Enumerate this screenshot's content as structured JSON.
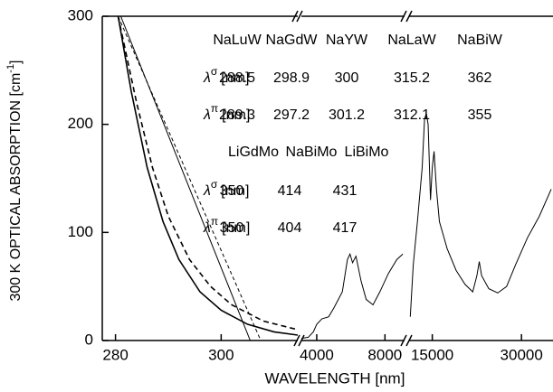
{
  "chart_data": {
    "type": "line",
    "x_label": "WAVELENGTH [nm]",
    "y_label": "300 K OPTICAL ABSORPTION [cm",
    "y_label_sup": "-1",
    "y_label_end": "]",
    "ylim": [
      0,
      300
    ],
    "yticks": [
      0,
      100,
      200,
      300
    ],
    "segments": [
      {
        "xlim": [
          277.5,
          314.5
        ],
        "xticks": [
          280,
          300
        ],
        "series": [
          {
            "color": "#000000",
            "style": "solid",
            "x": [
              280.5,
              283,
              286,
              289,
              292,
              296,
              300,
              305,
              310,
              314.5
            ],
            "values": [
              300,
              230,
              160,
              110,
              75,
              45,
              28,
              15,
              8,
              5
            ]
          },
          {
            "color": "#000000",
            "style": "dashed",
            "x": [
              280.5,
              284,
              287,
              290,
              294,
              298,
              302,
              308,
              314.5
            ],
            "values": [
              300,
              220,
              160,
              115,
              75,
              50,
              33,
              18,
              10
            ]
          },
          {
            "color": "#000000",
            "style": "thin",
            "x": [
              281,
              305.5
            ],
            "values": [
              300,
              0
            ]
          },
          {
            "color": "#000000",
            "style": "thin-dashed",
            "x": [
              280.5,
              307.5
            ],
            "values": [
              300,
              0
            ]
          }
        ]
      },
      {
        "xlim": [
          3100,
          9150
        ],
        "xticks": [
          4000,
          8000
        ],
        "series": [
          {
            "color": "#000000",
            "style": "thin",
            "x": [
              3100,
              3500,
              3800,
              4000,
              4300,
              4700,
              5000,
              5500,
              5800,
              5950,
              6100,
              6300,
              6600,
              6900,
              7300,
              7700,
              8200,
              8700,
              9050
            ],
            "values": [
              2,
              3,
              8,
              15,
              20,
              22,
              30,
              45,
              75,
              80,
              72,
              78,
              55,
              38,
              33,
              45,
              62,
              75,
              80
            ]
          }
        ]
      },
      {
        "xlim": [
          11100,
          35300
        ],
        "xticks": [
          15000,
          30000
        ],
        "series": [
          {
            "color": "#000000",
            "style": "thin",
            "x": [
              11300,
              11800,
              12500,
              13300,
              13700,
              14000,
              14300,
              14700,
              15000,
              15300,
              15700,
              16200,
              17500,
              19000,
              20500,
              21800,
              22500,
              22900,
              23300,
              24500,
              26000,
              27500,
              29000,
              31000,
              33000,
              35000
            ],
            "values": [
              22,
              70,
              110,
              160,
              205,
              210,
              200,
              130,
              160,
              175,
              140,
              110,
              85,
              65,
              52,
              45,
              60,
              73,
              60,
              48,
              44,
              50,
              70,
              95,
              115,
              140
            ]
          }
        ]
      }
    ],
    "tables": [
      {
        "columns": [
          "NaLuW",
          "NaGdW",
          "NaYW",
          "NaLaW",
          "NaBiW"
        ],
        "rows": [
          {
            "symbol": "λ",
            "sup": "σ",
            "unit": "[nm]",
            "values": [
              288.5,
              298.9,
              300,
              315.2,
              362
            ]
          },
          {
            "symbol": "λ",
            "sup": "π",
            "unit": "[nm]",
            "values": [
              289.3,
              297.2,
              301.2,
              312.1,
              355
            ]
          }
        ]
      },
      {
        "columns": [
          "LiGdMo",
          "NaBiMo",
          "LiBiMo"
        ],
        "rows": [
          {
            "symbol": "λ",
            "sup": "σ",
            "unit": "[nm]",
            "values": [
              350,
              414,
              431
            ]
          },
          {
            "symbol": "λ",
            "sup": "π",
            "unit": "[nm]",
            "values": [
              350,
              404,
              417
            ]
          }
        ]
      }
    ]
  }
}
